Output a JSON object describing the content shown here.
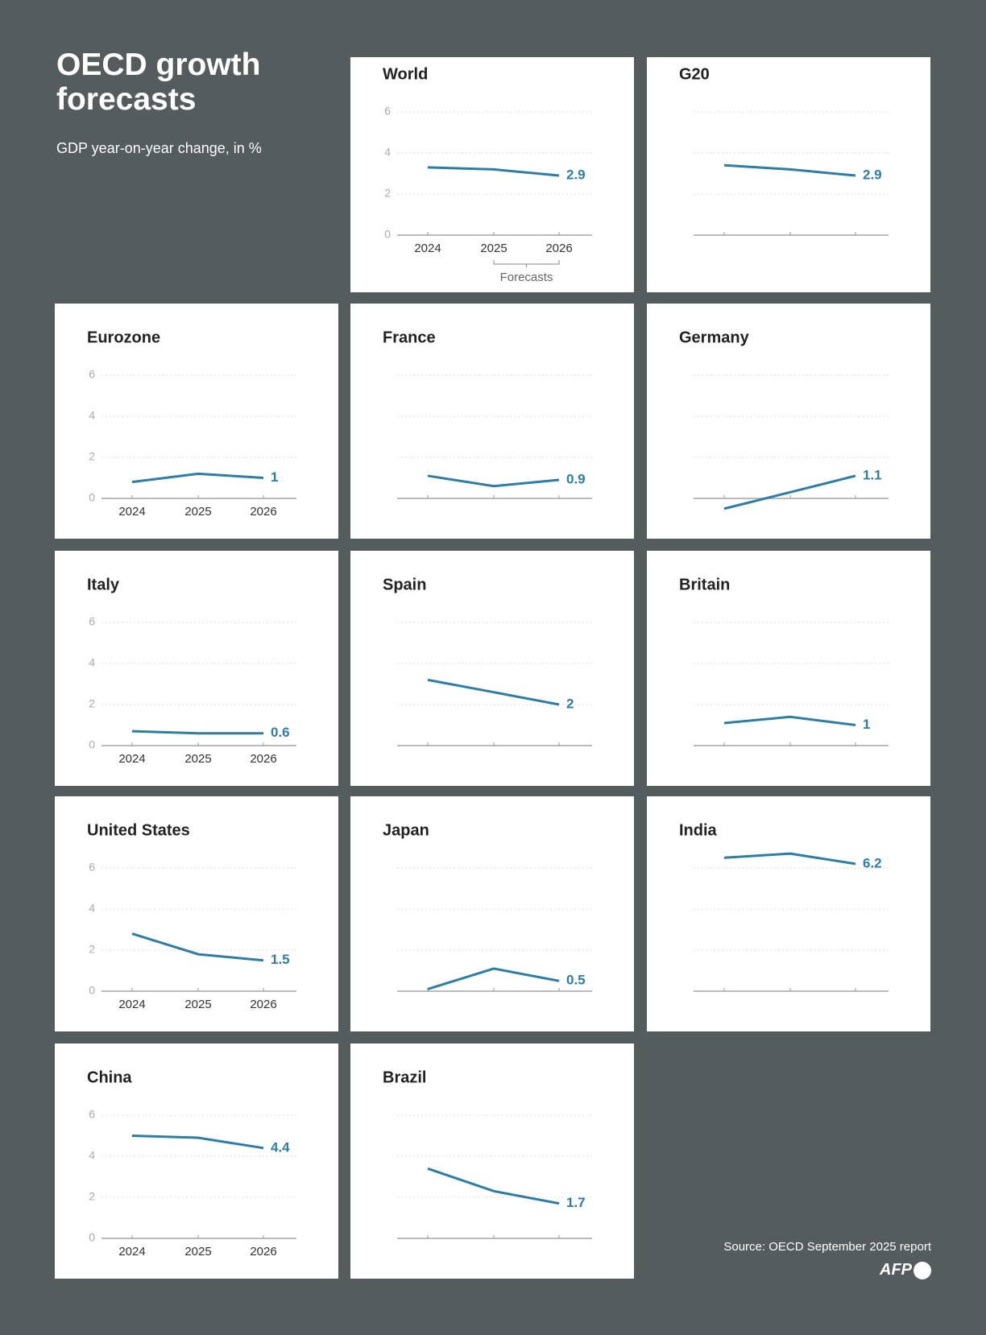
{
  "title": "OECD growth forecasts",
  "subtitle": "GDP year-on-year change, in %",
  "source": "Source: OECD September 2025 report",
  "logo": "AFP",
  "chart_data": [
    {
      "type": "line",
      "title": "World",
      "categories": [
        "2024",
        "2025",
        "2026"
      ],
      "values": [
        3.3,
        3.2,
        2.9
      ],
      "color": "#2b7ea8",
      "ylim": [
        0,
        6
      ],
      "yticks": [
        0,
        2,
        4,
        6
      ],
      "show_tick_labels": true,
      "annotation": "Forecasts"
    },
    {
      "type": "line",
      "title": "G20",
      "categories": [
        null,
        null,
        null
      ],
      "values": [
        3.4,
        3.2,
        2.9
      ],
      "color": "#2b7ea8",
      "ylim": [
        0,
        6
      ],
      "yticks": [
        0,
        2,
        4,
        6
      ],
      "show_tick_labels": false
    },
    {
      "type": "line",
      "title": "Eurozone",
      "categories": [
        "2024",
        "2025",
        "2026"
      ],
      "values": [
        0.8,
        1.2,
        1
      ],
      "color": "#2b7ea8",
      "ylim": [
        0,
        6
      ],
      "yticks": [
        0,
        2,
        4,
        6
      ],
      "show_tick_labels": true
    },
    {
      "type": "line",
      "title": "France",
      "categories": [
        null,
        null,
        null
      ],
      "values": [
        1.1,
        0.6,
        0.9
      ],
      "color": "#2b7ea8",
      "ylim": [
        0,
        6
      ],
      "yticks": [
        0,
        2,
        4,
        6
      ],
      "show_tick_labels": false
    },
    {
      "type": "line",
      "title": "Germany",
      "categories": [
        null,
        null,
        null
      ],
      "values": [
        -0.5,
        0.3,
        1.1
      ],
      "color": "#2b7ea8",
      "ylim": [
        0,
        6
      ],
      "yticks": [
        0,
        2,
        4,
        6
      ],
      "show_tick_labels": false
    },
    {
      "type": "line",
      "title": "Italy",
      "categories": [
        "2024",
        "2025",
        "2026"
      ],
      "values": [
        0.7,
        0.6,
        0.6
      ],
      "color": "#2b7ea8",
      "ylim": [
        0,
        6
      ],
      "yticks": [
        0,
        2,
        4,
        6
      ],
      "show_tick_labels": true
    },
    {
      "type": "line",
      "title": "Spain",
      "categories": [
        null,
        null,
        null
      ],
      "values": [
        3.2,
        2.6,
        2
      ],
      "color": "#2b7ea8",
      "ylim": [
        0,
        6
      ],
      "yticks": [
        0,
        2,
        4,
        6
      ],
      "show_tick_labels": false
    },
    {
      "type": "line",
      "title": "Britain",
      "categories": [
        null,
        null,
        null
      ],
      "values": [
        1.1,
        1.4,
        1
      ],
      "color": "#2b7ea8",
      "ylim": [
        0,
        6
      ],
      "yticks": [
        0,
        2,
        4,
        6
      ],
      "show_tick_labels": false
    },
    {
      "type": "line",
      "title": "United States",
      "categories": [
        "2024",
        "2025",
        "2026"
      ],
      "values": [
        2.8,
        1.8,
        1.5
      ],
      "color": "#2b7ea8",
      "ylim": [
        0,
        6
      ],
      "yticks": [
        0,
        2,
        4,
        6
      ],
      "show_tick_labels": true
    },
    {
      "type": "line",
      "title": "Japan",
      "categories": [
        null,
        null,
        null
      ],
      "values": [
        0.1,
        1.1,
        0.5
      ],
      "color": "#2b7ea8",
      "ylim": [
        0,
        6
      ],
      "yticks": [
        0,
        2,
        4,
        6
      ],
      "show_tick_labels": false
    },
    {
      "type": "line",
      "title": "India",
      "categories": [
        null,
        null,
        null
      ],
      "values": [
        6.5,
        6.7,
        6.2
      ],
      "color": "#2b7ea8",
      "ylim": [
        0,
        6
      ],
      "yticks": [
        0,
        2,
        4,
        6
      ],
      "show_tick_labels": false
    },
    {
      "type": "line",
      "title": "China",
      "categories": [
        "2024",
        "2025",
        "2026"
      ],
      "values": [
        5.0,
        4.9,
        4.4
      ],
      "color": "#2b7ea8",
      "ylim": [
        0,
        6
      ],
      "yticks": [
        0,
        2,
        4,
        6
      ],
      "show_tick_labels": true
    },
    {
      "type": "line",
      "title": "Brazil",
      "categories": [
        null,
        null,
        null
      ],
      "values": [
        3.4,
        2.3,
        1.7
      ],
      "color": "#2b7ea8",
      "ylim": [
        0,
        6
      ],
      "yticks": [
        0,
        2,
        4,
        6
      ],
      "show_tick_labels": false
    }
  ]
}
